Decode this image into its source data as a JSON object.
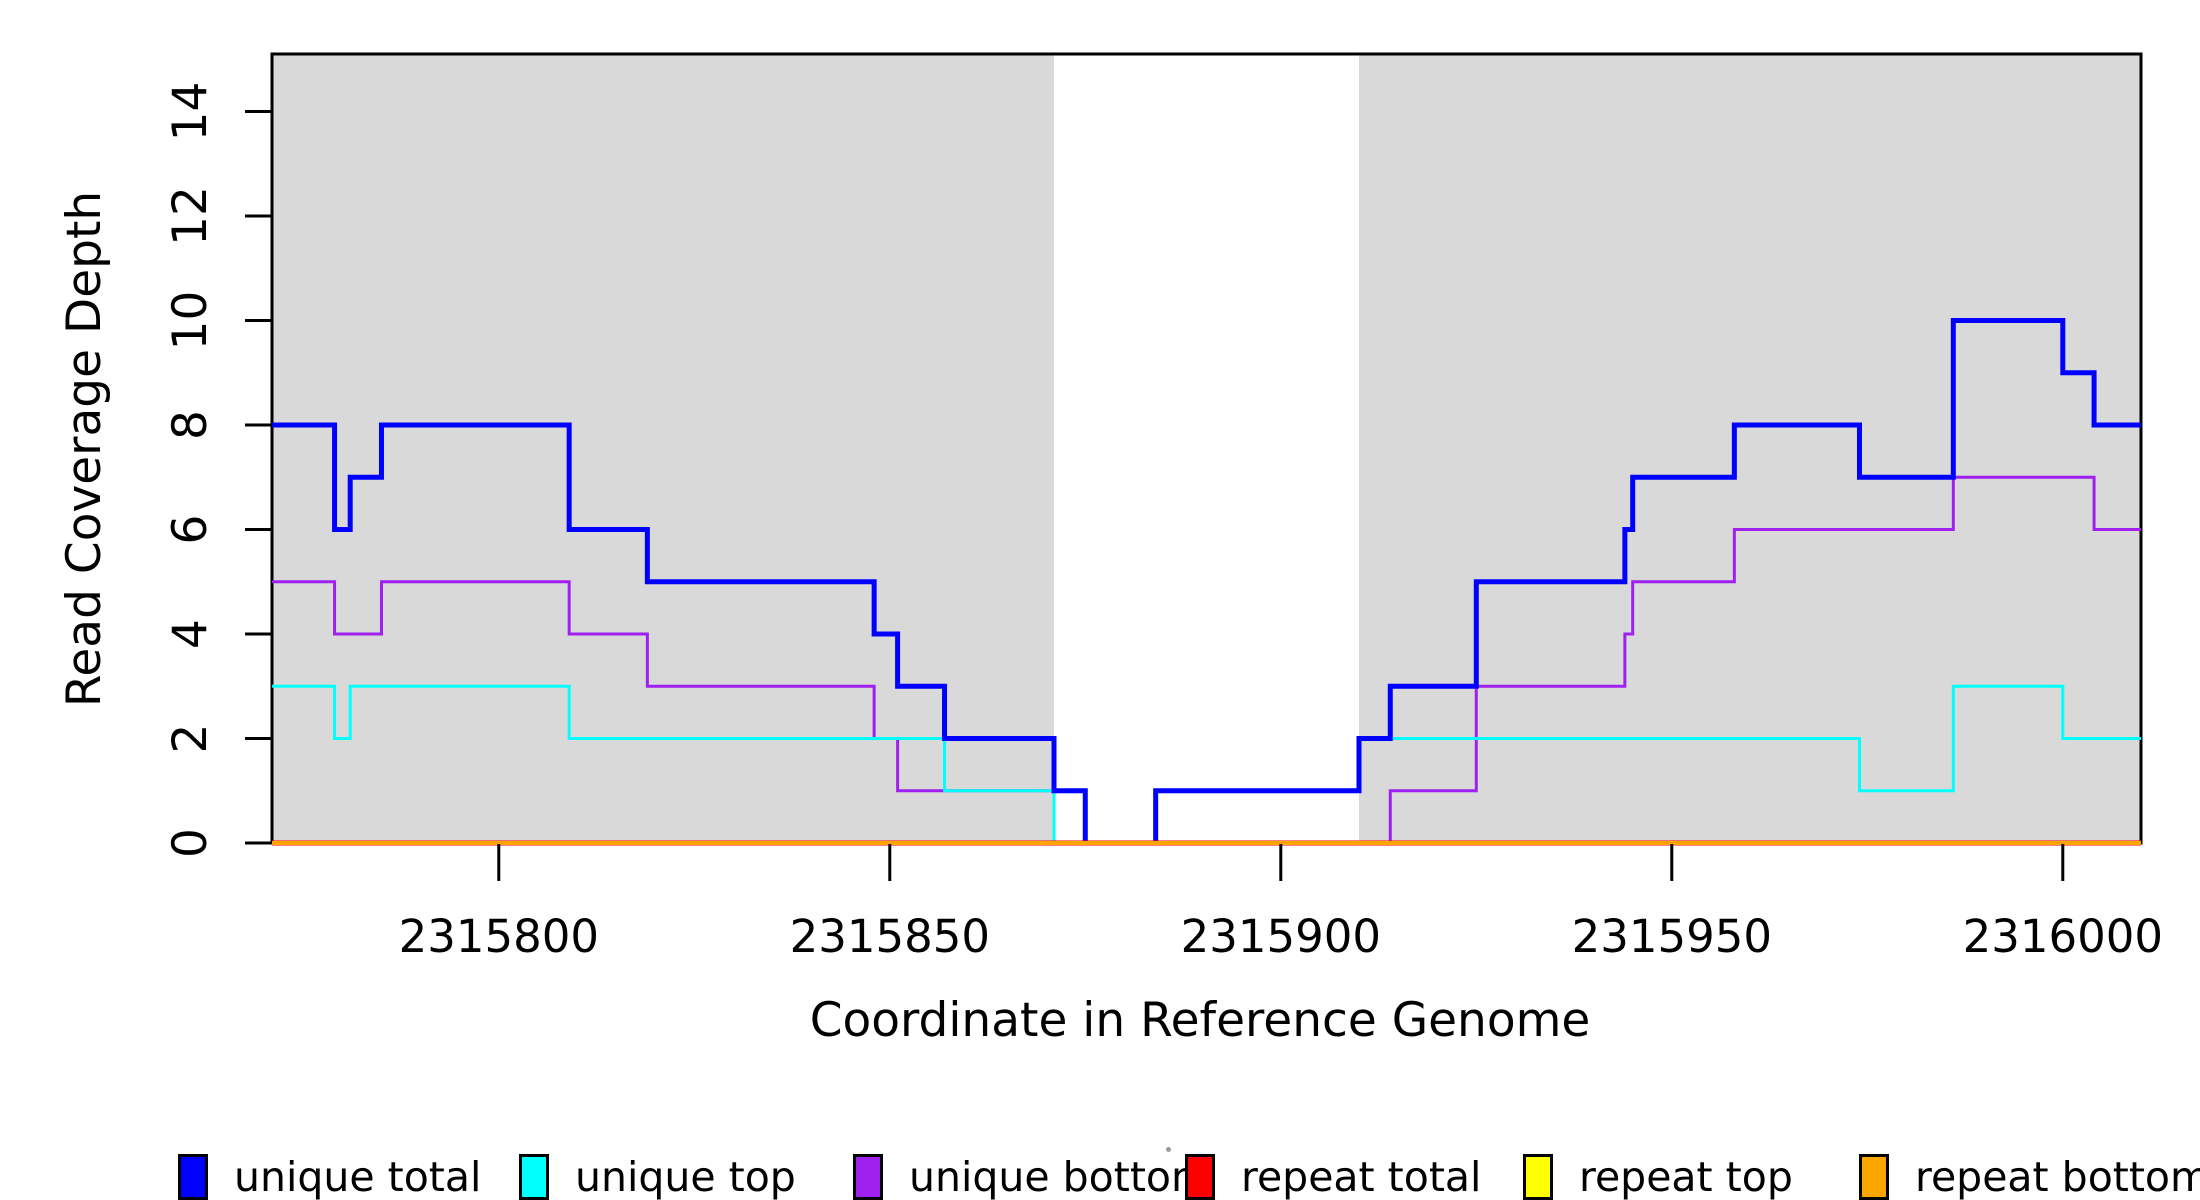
{
  "chart_data": {
    "type": "line",
    "subtype": "step",
    "title": "",
    "xlabel": "Coordinate in Reference Genome",
    "ylabel": "Read Coverage Depth",
    "xlim": [
      2315771,
      2316010
    ],
    "ylim": [
      0,
      15.1
    ],
    "x_ticks": [
      2315800,
      2315850,
      2315900,
      2315950,
      2316000
    ],
    "x_tick_labels": [
      "2315800",
      "2315850",
      "2315900",
      "2315950",
      "2316000"
    ],
    "y_ticks": [
      0,
      2,
      4,
      6,
      8,
      10,
      12,
      14
    ],
    "y_tick_labels": [
      "0",
      "2",
      "4",
      "6",
      "8",
      "10",
      "12",
      "14"
    ],
    "grid": false,
    "background_bands": [
      {
        "from": 2315771,
        "to": 2315871,
        "color": "#D9D9D9"
      },
      {
        "from": 2315910,
        "to": 2316010,
        "color": "#D9D9D9"
      }
    ],
    "series": [
      {
        "name": "unique bottom",
        "color": "#A020F0",
        "width": 3,
        "points": [
          [
            2315771,
            5
          ],
          [
            2315779,
            4
          ],
          [
            2315785,
            5
          ],
          [
            2315809,
            4
          ],
          [
            2315819,
            3
          ],
          [
            2315848,
            2
          ],
          [
            2315851,
            1
          ],
          [
            2315875,
            0
          ],
          [
            2315914,
            1
          ],
          [
            2315925,
            3
          ],
          [
            2315944,
            4
          ],
          [
            2315945,
            5
          ],
          [
            2315958,
            6
          ],
          [
            2315986,
            7
          ],
          [
            2316004,
            6
          ]
        ]
      },
      {
        "name": "unique top",
        "color": "#00FFFF",
        "width": 3,
        "points": [
          [
            2315771,
            3
          ],
          [
            2315779,
            2
          ],
          [
            2315781,
            3
          ],
          [
            2315809,
            2
          ],
          [
            2315857,
            1
          ],
          [
            2315871,
            0
          ],
          [
            2315884,
            1
          ],
          [
            2315910,
            2
          ],
          [
            2315974,
            1
          ],
          [
            2315986,
            3
          ],
          [
            2316000,
            2
          ]
        ]
      },
      {
        "name": "unique total",
        "color": "#0000FF",
        "width": 5,
        "points": [
          [
            2315771,
            8
          ],
          [
            2315779,
            6
          ],
          [
            2315781,
            7
          ],
          [
            2315785,
            8
          ],
          [
            2315809,
            6
          ],
          [
            2315819,
            5
          ],
          [
            2315848,
            4
          ],
          [
            2315851,
            3
          ],
          [
            2315857,
            2
          ],
          [
            2315871,
            1
          ],
          [
            2315875,
            0
          ],
          [
            2315884,
            1
          ],
          [
            2315910,
            2
          ],
          [
            2315914,
            3
          ],
          [
            2315925,
            5
          ],
          [
            2315944,
            6
          ],
          [
            2315945,
            7
          ],
          [
            2315958,
            8
          ],
          [
            2315974,
            7
          ],
          [
            2315986,
            10
          ],
          [
            2316000,
            9
          ],
          [
            2316004,
            8
          ]
        ]
      },
      {
        "name": "repeat total",
        "color": "#FF0000",
        "width": 5,
        "points": [
          [
            2315771,
            0
          ]
        ]
      },
      {
        "name": "repeat top",
        "color": "#FFFF00",
        "width": 3,
        "points": [
          [
            2315771,
            0
          ]
        ]
      },
      {
        "name": "repeat bottom",
        "color": "#FFA500",
        "width": 4,
        "points": [
          [
            2315771,
            0
          ]
        ]
      }
    ],
    "legend_position": "bottom",
    "legend": [
      {
        "label": "unique total",
        "color": "#0000FF"
      },
      {
        "label": "unique top",
        "color": "#00FFFF"
      },
      {
        "label": "unique bottom",
        "color": "#A020F0"
      },
      {
        "label": "repeat total",
        "color": "#FF0000"
      },
      {
        "label": "repeat top",
        "color": "#FFFF00"
      },
      {
        "label": "repeat bottom",
        "color": "#FFA500"
      }
    ]
  }
}
